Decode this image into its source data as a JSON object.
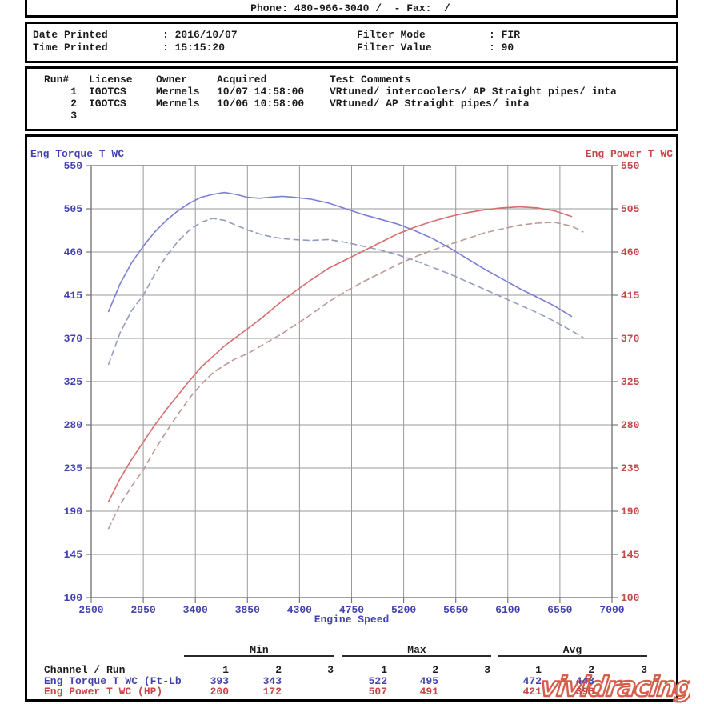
{
  "colors": {
    "blue": "#4343b0",
    "red": "#c54747",
    "text": "#1b1b1b",
    "grid": "#9a9a9a",
    "plot_border": "#777777",
    "watermark": "#d4604c"
  },
  "header": {
    "phone_line": "Phone: 480-966-3040 /  - Fax:  /"
  },
  "print_info": {
    "rows": [
      {
        "label": "Date Printed",
        "value": ": 2016/10/07"
      },
      {
        "label": "Time Printed",
        "value": ": 15:15:20"
      }
    ],
    "filters": [
      {
        "label": "Filter Mode",
        "value": ": FIR"
      },
      {
        "label": "Filter Value",
        "value": ": 90"
      }
    ]
  },
  "runs": {
    "headers": [
      "Run#",
      "License",
      "Owner",
      "Acquired",
      "Test Comments"
    ],
    "rows": [
      {
        "num": "1",
        "license": "IGOTCS",
        "owner": "Mermels",
        "acquired": "10/07 14:58:00",
        "comments": "VRtuned/ intercoolers/ AP Straight pipes/ inta"
      },
      {
        "num": "2",
        "license": "IGOTCS",
        "owner": "Mermels",
        "acquired": "10/06 10:58:00",
        "comments": "VRtuned/ AP Straight pipes/ inta"
      },
      {
        "num": "3",
        "license": "",
        "owner": "",
        "acquired": "",
        "comments": ""
      }
    ]
  },
  "chart_data": {
    "type": "line",
    "x_label": "Engine Speed",
    "x_range": [
      2500,
      7000
    ],
    "x_ticks": [
      2500,
      2950,
      3400,
      3850,
      4300,
      4750,
      5200,
      5650,
      6100,
      6550,
      7000
    ],
    "y_range": [
      100,
      550
    ],
    "y_ticks": [
      550,
      505,
      460,
      415,
      370,
      325,
      280,
      235,
      190,
      145,
      100
    ],
    "grid": true,
    "left_axis": {
      "label": "Eng Torque T WC",
      "color": "#4343b0"
    },
    "right_axis": {
      "label": "Eng Power T WC",
      "color": "#c54747"
    },
    "series": [
      {
        "name": "Eng Torque T WC run 1",
        "unit": "Ft-Lb",
        "style": "solid",
        "color": "#7b7fd4",
        "points": [
          [
            2650,
            398
          ],
          [
            2750,
            427
          ],
          [
            2850,
            449
          ],
          [
            2950,
            466
          ],
          [
            3050,
            481
          ],
          [
            3150,
            493
          ],
          [
            3250,
            503
          ],
          [
            3350,
            511
          ],
          [
            3450,
            517
          ],
          [
            3550,
            520
          ],
          [
            3650,
            522
          ],
          [
            3750,
            520
          ],
          [
            3850,
            517
          ],
          [
            3950,
            516
          ],
          [
            4050,
            517
          ],
          [
            4150,
            518
          ],
          [
            4250,
            517
          ],
          [
            4400,
            515
          ],
          [
            4550,
            511
          ],
          [
            4700,
            505
          ],
          [
            4850,
            499
          ],
          [
            5000,
            494
          ],
          [
            5150,
            489
          ],
          [
            5300,
            482
          ],
          [
            5450,
            474
          ],
          [
            5600,
            464
          ],
          [
            5750,
            453
          ],
          [
            5900,
            442
          ],
          [
            6050,
            432
          ],
          [
            6200,
            422
          ],
          [
            6350,
            413
          ],
          [
            6500,
            404
          ],
          [
            6650,
            393
          ]
        ]
      },
      {
        "name": "Eng Torque T WC run 2",
        "unit": "Ft-Lb",
        "style": "dashed",
        "color": "#949bbd",
        "points": [
          [
            2650,
            343
          ],
          [
            2750,
            376
          ],
          [
            2850,
            399
          ],
          [
            2950,
            415
          ],
          [
            3050,
            437
          ],
          [
            3150,
            456
          ],
          [
            3250,
            471
          ],
          [
            3350,
            483
          ],
          [
            3450,
            491
          ],
          [
            3550,
            495
          ],
          [
            3650,
            493
          ],
          [
            3750,
            488
          ],
          [
            3850,
            483
          ],
          [
            3950,
            479
          ],
          [
            4050,
            476
          ],
          [
            4150,
            474
          ],
          [
            4250,
            473
          ],
          [
            4400,
            472
          ],
          [
            4550,
            473
          ],
          [
            4700,
            470
          ],
          [
            4850,
            466
          ],
          [
            5000,
            462
          ],
          [
            5150,
            457
          ],
          [
            5300,
            451
          ],
          [
            5450,
            444
          ],
          [
            5600,
            437
          ],
          [
            5750,
            429
          ],
          [
            5900,
            421
          ],
          [
            6050,
            413
          ],
          [
            6200,
            405
          ],
          [
            6350,
            397
          ],
          [
            6500,
            388
          ],
          [
            6650,
            378
          ],
          [
            6750,
            371
          ]
        ]
      },
      {
        "name": "Eng Power T WC run 1",
        "unit": "HP",
        "style": "solid",
        "color": "#d66e6e",
        "points": [
          [
            2650,
            200
          ],
          [
            2750,
            224
          ],
          [
            2850,
            244
          ],
          [
            2950,
            262
          ],
          [
            3050,
            280
          ],
          [
            3150,
            296
          ],
          [
            3250,
            311
          ],
          [
            3350,
            326
          ],
          [
            3450,
            340
          ],
          [
            3550,
            351
          ],
          [
            3650,
            362
          ],
          [
            3750,
            371
          ],
          [
            3850,
            380
          ],
          [
            3950,
            389
          ],
          [
            4050,
            399
          ],
          [
            4150,
            409
          ],
          [
            4250,
            418
          ],
          [
            4400,
            431
          ],
          [
            4550,
            443
          ],
          [
            4700,
            452
          ],
          [
            4850,
            461
          ],
          [
            5000,
            470
          ],
          [
            5150,
            479
          ],
          [
            5300,
            486
          ],
          [
            5450,
            492
          ],
          [
            5600,
            497
          ],
          [
            5750,
            501
          ],
          [
            5900,
            504
          ],
          [
            6050,
            506
          ],
          [
            6200,
            507
          ],
          [
            6350,
            506
          ],
          [
            6500,
            503
          ],
          [
            6650,
            497
          ]
        ]
      },
      {
        "name": "Eng Power T WC run 2",
        "unit": "HP",
        "style": "dashed",
        "color": "#bd9898",
        "points": [
          [
            2650,
            172
          ],
          [
            2750,
            197
          ],
          [
            2850,
            216
          ],
          [
            2950,
            233
          ],
          [
            3050,
            254
          ],
          [
            3150,
            273
          ],
          [
            3250,
            291
          ],
          [
            3350,
            308
          ],
          [
            3450,
            322
          ],
          [
            3550,
            334
          ],
          [
            3650,
            342
          ],
          [
            3750,
            349
          ],
          [
            3850,
            354
          ],
          [
            3950,
            361
          ],
          [
            4050,
            368
          ],
          [
            4150,
            375
          ],
          [
            4250,
            383
          ],
          [
            4400,
            395
          ],
          [
            4550,
            408
          ],
          [
            4700,
            419
          ],
          [
            4850,
            429
          ],
          [
            5000,
            438
          ],
          [
            5150,
            447
          ],
          [
            5300,
            455
          ],
          [
            5450,
            462
          ],
          [
            5600,
            468
          ],
          [
            5750,
            474
          ],
          [
            5900,
            480
          ],
          [
            6050,
            484
          ],
          [
            6200,
            488
          ],
          [
            6350,
            490
          ],
          [
            6500,
            491
          ],
          [
            6650,
            487
          ],
          [
            6750,
            481
          ]
        ]
      }
    ]
  },
  "summary": {
    "channel_label": "Channel / Run",
    "group_headers": [
      "Min",
      "Max",
      "Avg"
    ],
    "run_numbers": [
      "1",
      "2",
      "3",
      "1",
      "2",
      "3",
      "1",
      "2",
      "3"
    ],
    "rows": [
      {
        "label": "Eng Torque T WC (Ft-Lb",
        "color": "#4343b0",
        "values": [
          "393",
          "343",
          "",
          "522",
          "495",
          "",
          "472",
          "443",
          ""
        ]
      },
      {
        "label": "Eng Power T WC (HP)",
        "color": "#c54747",
        "values": [
          "200",
          "172",
          "",
          "507",
          "491",
          "",
          "421",
          "398",
          ""
        ]
      }
    ]
  },
  "watermark": {
    "text": "vividracing",
    "color": "#d4604c"
  }
}
